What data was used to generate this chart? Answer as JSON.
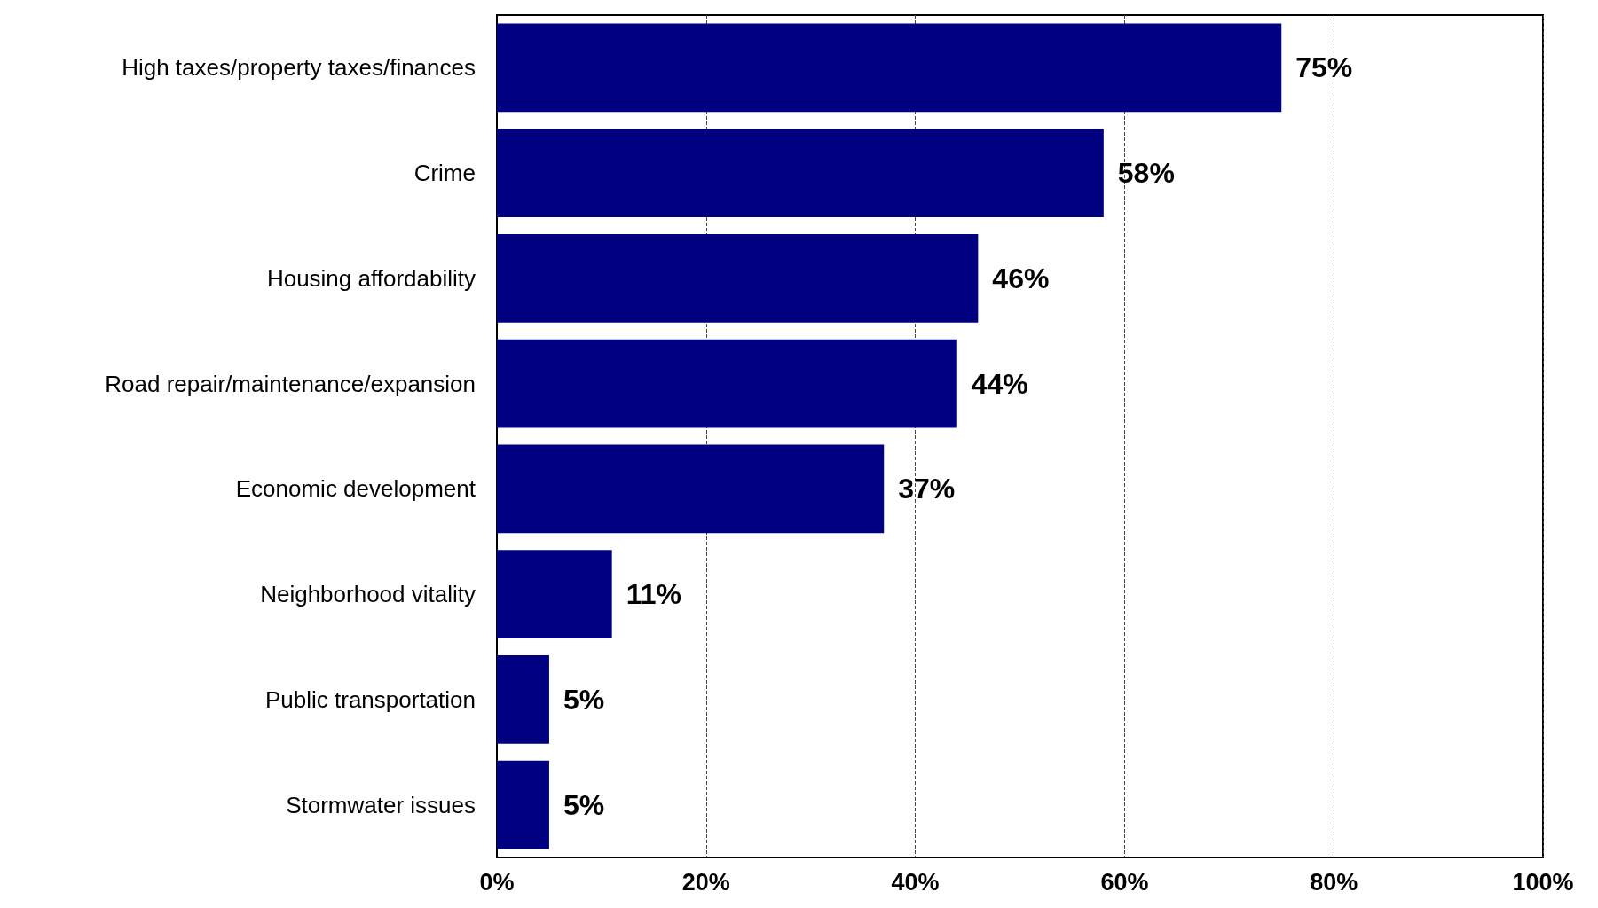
{
  "chart_data": {
    "type": "bar",
    "orientation": "horizontal",
    "categories": [
      "High taxes/property taxes/finances",
      "Crime",
      "Housing affordability",
      "Road repair/maintenance/expansion",
      "Economic development",
      "Neighborhood vitality",
      "Public transportation",
      "Stormwater issues"
    ],
    "values": [
      75,
      58,
      46,
      44,
      37,
      11,
      5,
      5
    ],
    "value_labels": [
      "75%",
      "58%",
      "46%",
      "44%",
      "37%",
      "11%",
      "5%",
      "5%"
    ],
    "color": "#000080",
    "xlim": [
      0,
      100
    ],
    "xticks": [
      {
        "value": 0,
        "label": "0%"
      },
      {
        "value": 20,
        "label": "20%"
      },
      {
        "value": 40,
        "label": "40%"
      },
      {
        "value": 60,
        "label": "60%"
      },
      {
        "value": 80,
        "label": "80%"
      },
      {
        "value": 100,
        "label": "100%"
      }
    ],
    "grid": "x",
    "line_style": "dashed"
  }
}
